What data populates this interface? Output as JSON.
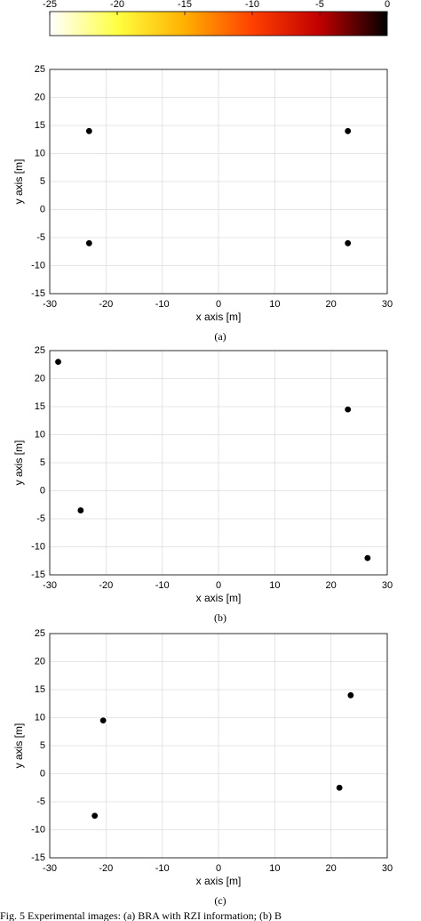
{
  "colorbar": {
    "lim": [
      -25,
      0
    ],
    "ticks": [
      -25,
      -20,
      -15,
      -10,
      -5,
      0
    ],
    "colors": [
      "#ffffff",
      "#ffff40",
      "#ffb000",
      "#ff4000",
      "#c00000",
      "#000000"
    ]
  },
  "chart_data": [
    {
      "type": "scatter",
      "subcaption": "(a)",
      "x_label": "x axis [m]",
      "y_label": "y axis [m]",
      "xlim": [
        -30,
        30
      ],
      "ylim": [
        -15,
        25
      ],
      "xticks": [
        -30,
        -20,
        -10,
        0,
        10,
        20,
        30
      ],
      "yticks": [
        -15,
        -10,
        -5,
        0,
        5,
        10,
        15,
        20,
        25
      ],
      "grid": true,
      "series": [
        {
          "color": "#000000",
          "x": [
            -23,
            23,
            -23,
            23
          ],
          "values": [
            14,
            14,
            -6,
            -6
          ]
        }
      ]
    },
    {
      "type": "scatter",
      "subcaption": "(b)",
      "x_label": "x axis [m]",
      "y_label": "y axis [m]",
      "xlim": [
        -30,
        30
      ],
      "ylim": [
        -15,
        25
      ],
      "xticks": [
        -30,
        -20,
        -10,
        0,
        10,
        20,
        30
      ],
      "yticks": [
        -15,
        -10,
        -5,
        0,
        5,
        10,
        15,
        20,
        25
      ],
      "grid": true,
      "series": [
        {
          "color": "#000000",
          "x": [
            -28.5,
            23,
            -24.5,
            26.5
          ],
          "values": [
            23,
            14.5,
            -3.5,
            -12
          ]
        }
      ]
    },
    {
      "type": "scatter",
      "subcaption": "(c)",
      "x_label": "x axis [m]",
      "y_label": "y axis [m]",
      "xlim": [
        -30,
        30
      ],
      "ylim": [
        -15,
        25
      ],
      "xticks": [
        -30,
        -20,
        -10,
        0,
        10,
        20,
        30
      ],
      "yticks": [
        -15,
        -10,
        -5,
        0,
        5,
        10,
        15,
        20,
        25
      ],
      "grid": true,
      "series": [
        {
          "color": "#000000",
          "x": [
            -20.5,
            23.5,
            -22,
            21.5
          ],
          "values": [
            9.5,
            14,
            -7.5,
            -2.5
          ]
        }
      ]
    }
  ],
  "caption": "Fig. 5 Experimental images: (a) BRA with RZI information; (b) B"
}
